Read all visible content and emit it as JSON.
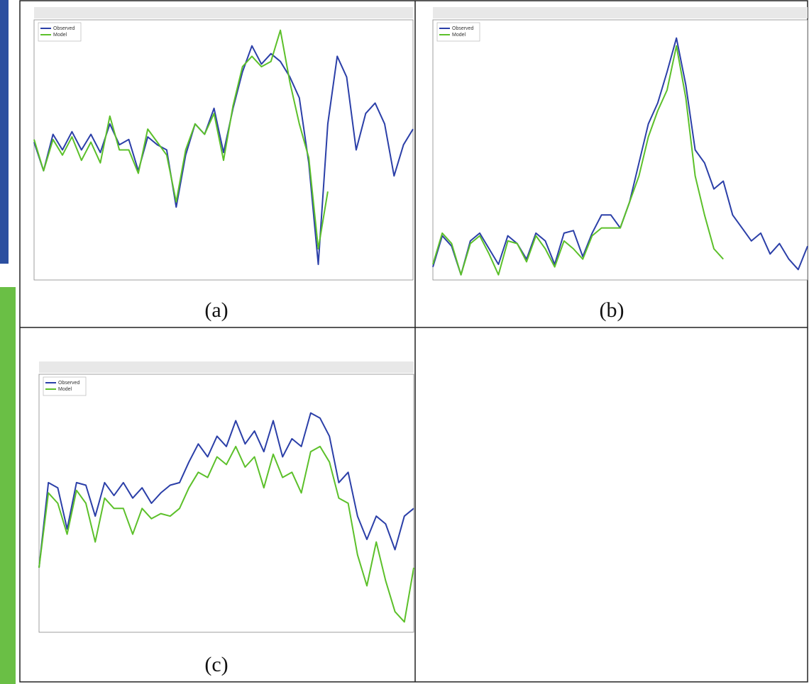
{
  "chart_data": [
    {
      "type": "line",
      "caption": "(a)",
      "legend": "upper left",
      "x": [
        0,
        1,
        2,
        3,
        4,
        5,
        6,
        7,
        8,
        9,
        10,
        11,
        12,
        13,
        14,
        15,
        16,
        17,
        18,
        19,
        20,
        21,
        22,
        23,
        24,
        25,
        26,
        27,
        28,
        29,
        30,
        31,
        32,
        33,
        34,
        35,
        36,
        37,
        38,
        39,
        40
      ],
      "xlim": [
        0,
        40
      ],
      "ylim": [
        0,
        10
      ],
      "series": [
        {
          "name": "Observed",
          "color": "#2b3fa8",
          "values": [
            5.3,
            4.2,
            5.6,
            5.0,
            5.7,
            5.0,
            5.6,
            4.9,
            6.0,
            5.2,
            5.4,
            4.2,
            5.5,
            5.2,
            5.0,
            2.8,
            4.8,
            6.0,
            5.6,
            6.6,
            4.9,
            6.6,
            8.0,
            9.0,
            8.3,
            8.7,
            8.4,
            7.8,
            7.0,
            4.5,
            0.6,
            6.0,
            8.6,
            7.8,
            5.0,
            6.4,
            6.8,
            6.0,
            4.0,
            5.2,
            5.8
          ]
        },
        {
          "name": "Model",
          "color": "#5cc02a",
          "values": [
            5.4,
            4.2,
            5.4,
            4.8,
            5.5,
            4.6,
            5.3,
            4.5,
            6.3,
            5.0,
            5.0,
            4.1,
            5.8,
            5.3,
            4.8,
            3.0,
            5.0,
            6.0,
            5.6,
            6.4,
            4.6,
            6.7,
            8.2,
            8.6,
            8.2,
            8.4,
            9.6,
            7.6,
            6.0,
            4.7,
            1.2,
            3.4,
            null,
            null,
            null,
            null,
            null,
            null,
            null,
            null,
            null
          ]
        }
      ]
    },
    {
      "type": "line",
      "caption": "(b)",
      "legend": "upper left",
      "x": [
        0,
        1,
        2,
        3,
        4,
        5,
        6,
        7,
        8,
        9,
        10,
        11,
        12,
        13,
        14,
        15,
        16,
        17,
        18,
        19,
        20,
        21,
        22,
        23,
        24,
        25,
        26,
        27,
        28,
        29,
        30,
        31,
        32,
        33,
        34,
        35,
        36,
        37,
        38,
        39,
        40
      ],
      "xlim": [
        0,
        40
      ],
      "ylim": [
        0,
        10
      ],
      "series": [
        {
          "name": "Observed",
          "color": "#2b3fa8",
          "values": [
            0.5,
            1.7,
            1.3,
            0.2,
            1.5,
            1.8,
            1.2,
            0.6,
            1.7,
            1.4,
            0.8,
            1.8,
            1.5,
            0.6,
            1.8,
            1.9,
            0.9,
            1.8,
            2.5,
            2.5,
            2.0,
            3.0,
            4.5,
            6.0,
            6.8,
            8.0,
            9.3,
            7.5,
            5.0,
            4.5,
            3.5,
            3.8,
            2.5,
            2.0,
            1.5,
            1.8,
            1.0,
            1.4,
            0.8,
            0.4,
            1.3
          ]
        },
        {
          "name": "Model",
          "color": "#5cc02a",
          "values": [
            0.6,
            1.8,
            1.4,
            0.2,
            1.4,
            1.7,
            1.0,
            0.2,
            1.5,
            1.4,
            0.7,
            1.7,
            1.2,
            0.5,
            1.5,
            1.2,
            0.8,
            1.7,
            2.0,
            2.0,
            2.0,
            3.0,
            4.0,
            5.5,
            6.5,
            7.3,
            9.0,
            7.0,
            4.0,
            2.5,
            1.2,
            0.8,
            null,
            null,
            null,
            null,
            null,
            null,
            null,
            null,
            null
          ]
        }
      ]
    },
    {
      "type": "line",
      "caption": "(c)",
      "legend": "upper left",
      "x": [
        0,
        1,
        2,
        3,
        4,
        5,
        6,
        7,
        8,
        9,
        10,
        11,
        12,
        13,
        14,
        15,
        16,
        17,
        18,
        19,
        20,
        21,
        22,
        23,
        24,
        25,
        26,
        27,
        28,
        29,
        30,
        31,
        32,
        33,
        34,
        35,
        36,
        37,
        38,
        39,
        40
      ],
      "xlim": [
        0,
        40
      ],
      "ylim": [
        0,
        10
      ],
      "series": [
        {
          "name": "Observed",
          "color": "#2b3fa8",
          "values": [
            2.5,
            5.8,
            5.6,
            4.0,
            5.8,
            5.7,
            4.5,
            5.8,
            5.3,
            5.8,
            5.2,
            5.6,
            5.0,
            5.4,
            5.7,
            5.8,
            6.6,
            7.3,
            6.8,
            7.6,
            7.2,
            8.2,
            7.3,
            7.8,
            7.0,
            8.2,
            6.8,
            7.5,
            7.2,
            8.5,
            8.3,
            7.6,
            5.8,
            6.2,
            4.5,
            3.6,
            4.5,
            4.2,
            3.2,
            4.5,
            4.8
          ]
        },
        {
          "name": "Model",
          "color": "#5cc02a",
          "values": [
            2.5,
            5.4,
            5.0,
            3.8,
            5.5,
            5.0,
            3.5,
            5.2,
            4.8,
            4.8,
            3.8,
            4.8,
            4.4,
            4.6,
            4.5,
            4.8,
            5.6,
            6.2,
            6.0,
            6.8,
            6.5,
            7.2,
            6.4,
            6.8,
            5.6,
            6.9,
            6.0,
            6.2,
            5.4,
            7.0,
            7.2,
            6.6,
            5.2,
            5.0,
            3.0,
            1.8,
            3.5,
            2.0,
            0.8,
            0.4,
            2.5
          ]
        }
      ]
    }
  ]
}
